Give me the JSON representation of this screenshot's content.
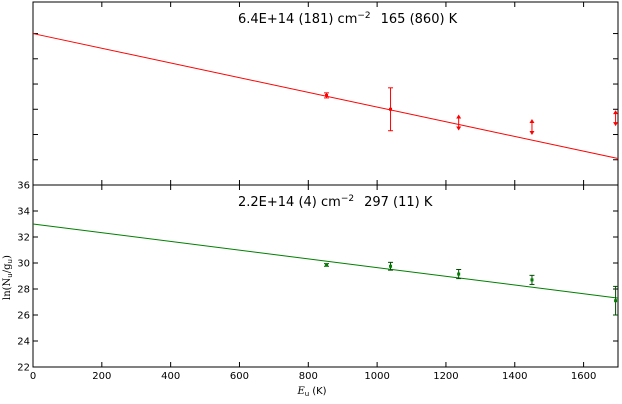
{
  "chart_data": {
    "type": "scatter",
    "shared_x": {
      "label_main": "E",
      "label_sub": "u",
      "label_unit": "(K)",
      "xlim": [
        0,
        1700
      ],
      "ticks": [
        0,
        200,
        400,
        600,
        800,
        1000,
        1200,
        1400,
        1600
      ],
      "tick_labels": [
        "0",
        "200",
        "400",
        "600",
        "800",
        "1000",
        "1200",
        "1400",
        "1600"
      ]
    },
    "panels": [
      {
        "color": "#ff0000",
        "annotation": {
          "prefix": "6.4E+14 (181) cm",
          "exponent": "−2",
          "suffix": "165 (860) K"
        },
        "ylim": [
          36,
          50.5
        ],
        "y_ticks": [
          36
        ],
        "y_tick_labels": [
          "36"
        ],
        "fit_line": {
          "x": [
            0,
            1700
          ],
          "y": [
            48.0,
            38.1
          ]
        },
        "points": [
          {
            "x": 853,
            "y": 43.1,
            "err_low": 0.2,
            "err_high": 0.2,
            "kind": "error"
          },
          {
            "x": 1039,
            "y": 42.0,
            "err_low": 1.7,
            "err_high": 1.7,
            "kind": "error"
          },
          {
            "x": 1237,
            "y": 40.95,
            "err_low": 0,
            "err_high": 0,
            "kind": "limit"
          },
          {
            "x": 1450,
            "y": 40.6,
            "err_low": 0,
            "err_high": 0,
            "kind": "limit"
          },
          {
            "x": 1693,
            "y": 41.3,
            "err_low": 0,
            "err_high": 0,
            "kind": "limit"
          }
        ]
      },
      {
        "color": "#007f00",
        "annotation": {
          "prefix": "2.2E+14 (4) cm",
          "exponent": "−2",
          "suffix": "297 (11) K"
        },
        "ylim": [
          22,
          36
        ],
        "y_ticks": [
          22,
          24,
          26,
          28,
          30,
          32,
          34
        ],
        "y_tick_labels": [
          "22",
          "24",
          "26",
          "28",
          "30",
          "32",
          "34"
        ],
        "y_label": {
          "main": "ln(N",
          "sub1": "u",
          "mid": "/g",
          "sub2": "u",
          "end": ")"
        },
        "fit_line": {
          "x": [
            0,
            1700
          ],
          "y": [
            33.0,
            27.3
          ]
        },
        "points": [
          {
            "x": 853,
            "y": 29.85,
            "err_low": 0.1,
            "err_high": 0.1,
            "kind": "error"
          },
          {
            "x": 1039,
            "y": 29.75,
            "err_low": 0.3,
            "err_high": 0.3,
            "kind": "error"
          },
          {
            "x": 1237,
            "y": 29.15,
            "err_low": 0.35,
            "err_high": 0.35,
            "kind": "error"
          },
          {
            "x": 1450,
            "y": 28.7,
            "err_low": 0.35,
            "err_high": 0.35,
            "kind": "error"
          },
          {
            "x": 1693,
            "y": 27.1,
            "err_low": 1.1,
            "err_high": 1.1,
            "kind": "error"
          }
        ]
      }
    ]
  }
}
